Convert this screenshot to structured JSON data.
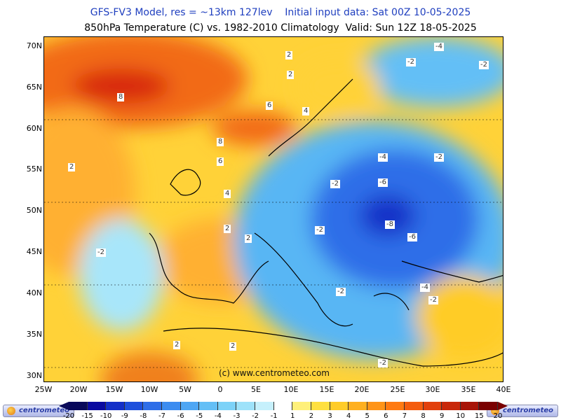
{
  "header": {
    "line1": "GFS-FV3 Model, res = ~13km 127lev    Initial input data: Sat 00Z 10-05-2025",
    "line2": "850hPa Temperature (C) vs. 1982-2010 Climatology  Valid: Sun 12Z 18-05-2025"
  },
  "map": {
    "lat_labels": [
      "70N",
      "65N",
      "60N",
      "55N",
      "50N",
      "45N",
      "40N",
      "35N",
      "30N"
    ],
    "lon_labels": [
      "25W",
      "20W",
      "15W",
      "10W",
      "5W",
      "0",
      "5E",
      "10E",
      "15E",
      "20E",
      "25E",
      "30E",
      "35E",
      "40E"
    ],
    "credit": "(c) www.centrometeo.com",
    "contour_labels": [
      "8",
      "2",
      "6",
      "8",
      "6",
      "4",
      "4",
      "2",
      "2",
      "2",
      "2",
      "-2",
      "-2",
      "-2",
      "-4",
      "-6",
      "-8",
      "-6",
      "-4",
      "-2",
      "-2",
      "-2",
      "2",
      "2",
      "-2",
      "-2",
      "-4",
      "-2"
    ]
  },
  "legend": {
    "ticks": [
      "-20",
      "-15",
      "-10",
      "-9",
      "-8",
      "-7",
      "-6",
      "-5",
      "-4",
      "-3",
      "-2",
      "-1",
      "1",
      "2",
      "3",
      "4",
      "5",
      "6",
      "7",
      "8",
      "9",
      "10",
      "15",
      "20"
    ],
    "colors": [
      "#08085a",
      "#0a0aa0",
      "#1430c8",
      "#1e50dc",
      "#2e6ee8",
      "#3c8cf0",
      "#4ea6f4",
      "#64bff6",
      "#7cd2f8",
      "#9ee2fa",
      "#c6f0fc",
      "#ffffff",
      "#fff07a",
      "#ffe040",
      "#ffcc28",
      "#ffb020",
      "#ff9418",
      "#ff7a12",
      "#f45c0e",
      "#e2400c",
      "#c8280a",
      "#a81408",
      "#7a0000"
    ],
    "logo_left": "centrometeo",
    "logo_right": "centrometeo"
  }
}
